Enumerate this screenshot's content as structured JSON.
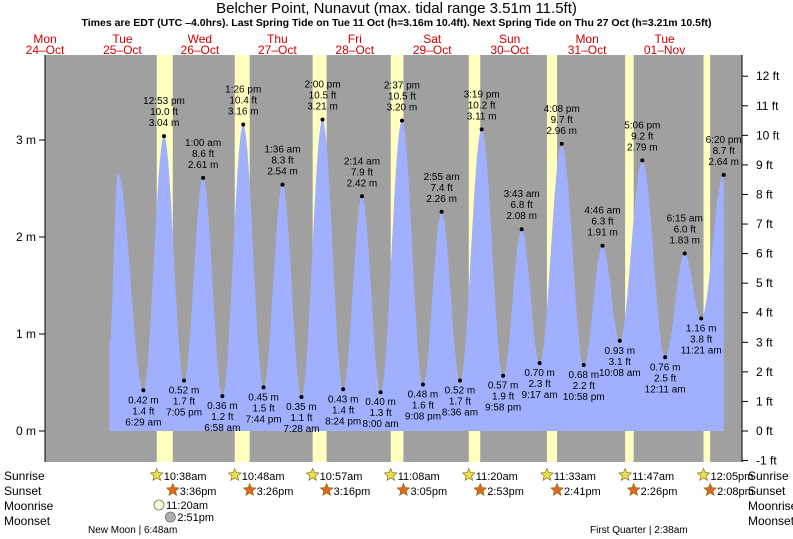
{
  "page": {
    "title": "Belcher Point, Nunavut (max. tidal range 3.51m 11.5ft)",
    "subtitle": "Times are EDT (UTC –4.0hrs). Last Spring Tide on Tue 11 Oct (h=3.16m 10.4ft). Next Spring Tide on Thu 27 Oct (h=3.21m 10.5ft)"
  },
  "row_labels": {
    "sunrise": "Sunrise",
    "sunset": "Sunset",
    "moonrise": "Moonrise",
    "moonset": "Moonset"
  },
  "colors": {
    "night": "#a0a0a0",
    "day": "#ffffc0",
    "water": "#a0b0ff",
    "date_text": "#d00000",
    "sunrise_star": "#e8e050",
    "sunset_star": "#e06820"
  },
  "chart_data": {
    "type": "area",
    "title": "Belcher Point, Nunavut (max. tidal range 3.51m 11.5ft)",
    "ylabel_left": "m",
    "ylabel_right": "ft",
    "ylim_m": [
      -0.3,
      3.85
    ],
    "left_ticks": [
      "0 m",
      "1 m",
      "2 m",
      "3 m"
    ],
    "left_tick_values": [
      0,
      1,
      2,
      3
    ],
    "right_ticks": [
      "-1 ft",
      "0 ft",
      "1 ft",
      "2 ft",
      "3 ft",
      "4 ft",
      "5 ft",
      "6 ft",
      "7 ft",
      "8 ft",
      "9 ft",
      "10 ft",
      "11 ft",
      "12 ft"
    ],
    "right_tick_values": [
      -1,
      0,
      1,
      2,
      3,
      4,
      5,
      6,
      7,
      8,
      9,
      10,
      11,
      12
    ],
    "days": [
      {
        "dow": "Mon",
        "date": "24–Oct"
      },
      {
        "dow": "Tue",
        "date": "25–Oct"
      },
      {
        "dow": "Wed",
        "date": "26–Oct"
      },
      {
        "dow": "Thu",
        "date": "27–Oct"
      },
      {
        "dow": "Fri",
        "date": "28–Oct"
      },
      {
        "dow": "Sat",
        "date": "29–Oct"
      },
      {
        "dow": "Sun",
        "date": "30–Oct"
      },
      {
        "dow": "Mon",
        "date": "31–Oct"
      },
      {
        "dow": "Tue",
        "date": "01–Nov"
      }
    ],
    "tides": [
      {
        "hour": 22.6,
        "m": 2.66,
        "labels": []
      },
      {
        "hour": 30.48,
        "m": 0.42,
        "type": "low",
        "labels": [
          "0.42 m",
          "1.4 ft",
          "6:29 am"
        ]
      },
      {
        "hour": 36.88,
        "m": 3.04,
        "type": "high",
        "labels": [
          "12:53 pm",
          "10.0 ft",
          "3.04 m"
        ]
      },
      {
        "hour": 43.08,
        "m": 0.52,
        "type": "low",
        "labels": [
          "0.52 m",
          "1.7 ft",
          "7:05 pm"
        ]
      },
      {
        "hour": 49.0,
        "m": 2.61,
        "type": "high",
        "labels": [
          "1:00 am",
          "8.6 ft",
          "2.61 m"
        ]
      },
      {
        "hour": 54.97,
        "m": 0.36,
        "type": "low",
        "labels": [
          "0.36 m",
          "1.2 ft",
          "6:58 am"
        ]
      },
      {
        "hour": 61.43,
        "m": 3.16,
        "type": "high",
        "labels": [
          "1:26 pm",
          "10.4 ft",
          "3.16 m"
        ]
      },
      {
        "hour": 67.73,
        "m": 0.45,
        "type": "low",
        "labels": [
          "0.45 m",
          "1.5 ft",
          "7:44 pm"
        ]
      },
      {
        "hour": 73.6,
        "m": 2.54,
        "type": "high",
        "labels": [
          "1:36 am",
          "8.3 ft",
          "2.54 m"
        ]
      },
      {
        "hour": 79.47,
        "m": 0.35,
        "type": "low",
        "labels": [
          "0.35 m",
          "1.1 ft",
          "7:28 am"
        ]
      },
      {
        "hour": 86.0,
        "m": 3.21,
        "type": "high",
        "labels": [
          "2:00 pm",
          "10.5 ft",
          "3.21 m"
        ]
      },
      {
        "hour": 92.4,
        "m": 0.43,
        "type": "low",
        "labels": [
          "0.43 m",
          "1.4 ft",
          "8:24 pm"
        ]
      },
      {
        "hour": 98.23,
        "m": 2.42,
        "type": "high",
        "labels": [
          "2:14 am",
          "7.9 ft",
          "2.42 m"
        ]
      },
      {
        "hour": 104.0,
        "m": 0.4,
        "type": "low",
        "labels": [
          "0.40 m",
          "1.3 ft",
          "8:00 am"
        ]
      },
      {
        "hour": 110.62,
        "m": 3.2,
        "type": "high",
        "labels": [
          "2:37 pm",
          "10.5 ft",
          "3.20 m"
        ]
      },
      {
        "hour": 117.13,
        "m": 0.48,
        "type": "low",
        "labels": [
          "0.48 m",
          "1.6 ft",
          "9:08 pm"
        ]
      },
      {
        "hour": 122.92,
        "m": 2.26,
        "type": "high",
        "labels": [
          "2:55 am",
          "7.4 ft",
          "2.26 m"
        ]
      },
      {
        "hour": 128.6,
        "m": 0.52,
        "type": "low",
        "labels": [
          "0.52 m",
          "1.7 ft",
          "8:36 am"
        ]
      },
      {
        "hour": 135.32,
        "m": 3.11,
        "type": "high",
        "labels": [
          "3:19 pm",
          "10.2 ft",
          "3.11 m"
        ]
      },
      {
        "hour": 141.97,
        "m": 0.57,
        "type": "low",
        "labels": [
          "0.57 m",
          "1.9 ft",
          "9:58 pm"
        ]
      },
      {
        "hour": 147.72,
        "m": 2.08,
        "type": "high",
        "labels": [
          "3:43 am",
          "6.8 ft",
          "2.08 m"
        ]
      },
      {
        "hour": 153.28,
        "m": 0.7,
        "type": "low",
        "labels": [
          "0.70 m",
          "2.3 ft",
          "9:17 am"
        ]
      },
      {
        "hour": 160.13,
        "m": 2.96,
        "type": "high",
        "labels": [
          "4:08 pm",
          "9.7 ft",
          "2.96 m"
        ]
      },
      {
        "hour": 166.97,
        "m": 0.68,
        "type": "low",
        "labels": [
          "0.68 m",
          "2.2 ft",
          "10:58 pm"
        ]
      },
      {
        "hour": 172.77,
        "m": 1.91,
        "type": "high",
        "labels": [
          "4:46 am",
          "6.3 ft",
          "1.91 m"
        ]
      },
      {
        "hour": 178.13,
        "m": 0.93,
        "type": "low",
        "labels": [
          "0.93 m",
          "3.1 ft",
          "10:08 am"
        ]
      },
      {
        "hour": 185.1,
        "m": 2.79,
        "type": "high",
        "labels": [
          "5:06 pm",
          "9.2 ft",
          "2.79 m"
        ]
      },
      {
        "hour": 192.18,
        "m": 0.76,
        "type": "low",
        "labels": [
          "0.76 m",
          "2.5 ft",
          "12:11 am"
        ]
      },
      {
        "hour": 198.25,
        "m": 1.83,
        "type": "high",
        "labels": [
          "6:15 am",
          "6.0 ft",
          "1.83 m"
        ]
      },
      {
        "hour": 203.35,
        "m": 1.16,
        "type": "low",
        "labels": [
          "1.16 m",
          "3.8 ft",
          "11:21 am"
        ]
      },
      {
        "hour": 210.33,
        "m": 2.64,
        "type": "high",
        "labels": [
          "6:20 pm",
          "8.7 ft",
          "2.64 m"
        ]
      }
    ],
    "sun": [
      {
        "rise_h": 34.63,
        "rise": "10:38am",
        "set_h": 39.6,
        "set": "3:36pm"
      },
      {
        "rise_h": 58.8,
        "rise": "10:48am",
        "set_h": 63.43,
        "set": "3:26pm"
      },
      {
        "rise_h": 82.95,
        "rise": "10:57am",
        "set_h": 87.27,
        "set": "3:16pm"
      },
      {
        "rise_h": 107.13,
        "rise": "11:08am",
        "set_h": 111.08,
        "set": "3:05pm"
      },
      {
        "rise_h": 131.33,
        "rise": "11:20am",
        "set_h": 134.88,
        "set": "2:53pm"
      },
      {
        "rise_h": 155.55,
        "rise": "11:33am",
        "set_h": 158.68,
        "set": "2:41pm"
      },
      {
        "rise_h": 179.78,
        "rise": "11:47am",
        "set_h": 182.43,
        "set": "2:26pm"
      },
      {
        "rise_h": 204.08,
        "rise": "12:05pm",
        "set_h": 206.13,
        "set": "2:08pm"
      }
    ],
    "moon": [
      {
        "kind": "moonrise",
        "hour": 35.33,
        "time": "11:20am"
      },
      {
        "kind": "moonset",
        "hour": 38.85,
        "time": "2:51pm"
      }
    ],
    "phases": [
      {
        "label": "New Moon | 6:48am"
      },
      {
        "label": "First Quarter | 2:38am"
      }
    ]
  }
}
